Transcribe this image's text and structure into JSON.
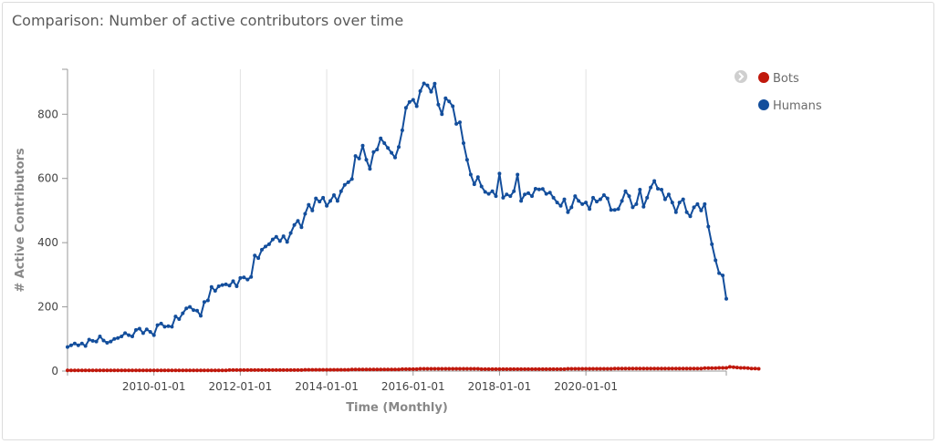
{
  "panel": {
    "title": "Comparison: Number of active contributors over time"
  },
  "legend": {
    "toggle_icon": "chevron-right-icon",
    "items": [
      {
        "name": "Bots",
        "color": "#c0180c"
      },
      {
        "name": "Humans",
        "color": "#134e9c"
      }
    ]
  },
  "chart_data": {
    "type": "line",
    "title": "Comparison: Number of active contributors over time",
    "xlabel": "Time (Monthly)",
    "ylabel": "# Active Contributors",
    "x_start": "2008-01-01",
    "x_frequency": "monthly",
    "x_tick_labels": [
      "2010-01-01",
      "2012-01-01",
      "2014-01-01",
      "2016-01-01",
      "2018-01-01",
      "2020-01-01"
    ],
    "y_ticks": [
      0,
      200,
      400,
      600,
      800
    ],
    "ylim": [
      0,
      940
    ],
    "grid": "vertical",
    "legend_position": "top-right",
    "series": [
      {
        "name": "Humans",
        "color": "#134e9c",
        "values": [
          75,
          80,
          86,
          80,
          86,
          78,
          98,
          94,
          92,
          108,
          95,
          88,
          92,
          100,
          103,
          108,
          118,
          112,
          108,
          128,
          132,
          118,
          130,
          122,
          112,
          143,
          148,
          138,
          140,
          138,
          170,
          162,
          180,
          195,
          200,
          190,
          188,
          172,
          215,
          220,
          262,
          250,
          264,
          268,
          270,
          266,
          280,
          264,
          290,
          292,
          285,
          293,
          360,
          352,
          378,
          388,
          395,
          410,
          418,
          405,
          420,
          402,
          430,
          455,
          468,
          448,
          490,
          518,
          500,
          538,
          528,
          540,
          515,
          530,
          548,
          530,
          560,
          580,
          588,
          598,
          670,
          662,
          702,
          658,
          630,
          682,
          690,
          725,
          710,
          695,
          680,
          665,
          698,
          750,
          820,
          838,
          845,
          825,
          872,
          896,
          890,
          870,
          895,
          830,
          800,
          850,
          840,
          825,
          770,
          775,
          710,
          658,
          612,
          582,
          604,
          575,
          558,
          552,
          560,
          545,
          615,
          540,
          550,
          545,
          560,
          612,
          530,
          550,
          554,
          545,
          568,
          566,
          567,
          552,
          556,
          540,
          525,
          515,
          535,
          495,
          510,
          545,
          530,
          520,
          525,
          505,
          540,
          528,
          535,
          548,
          538,
          502,
          502,
          505,
          530,
          560,
          545,
          510,
          520,
          565,
          512,
          540,
          572,
          592,
          568,
          565,
          535,
          550,
          525,
          495,
          525,
          535,
          495,
          482,
          510,
          520,
          500,
          520,
          450,
          395,
          345,
          305,
          298,
          225
        ],
        "marker": "circle"
      },
      {
        "name": "Bots",
        "color": "#c0180c",
        "values": [
          2,
          2,
          2,
          2,
          2,
          2,
          2,
          2,
          2,
          2,
          2,
          2,
          2,
          2,
          2,
          2,
          2,
          2,
          2,
          2,
          2,
          2,
          2,
          2,
          2,
          2,
          2,
          2,
          2,
          2,
          2,
          2,
          2,
          2,
          2,
          2,
          2,
          2,
          2,
          2,
          2,
          2,
          2,
          2,
          2,
          3,
          3,
          3,
          3,
          3,
          3,
          3,
          3,
          3,
          3,
          3,
          3,
          3,
          3,
          3,
          3,
          3,
          3,
          3,
          3,
          3,
          4,
          4,
          4,
          4,
          4,
          4,
          4,
          4,
          4,
          4,
          4,
          4,
          4,
          5,
          5,
          5,
          5,
          5,
          5,
          5,
          5,
          5,
          5,
          5,
          5,
          5,
          5,
          6,
          6,
          6,
          6,
          6,
          7,
          7,
          7,
          7,
          7,
          7,
          7,
          7,
          7,
          7,
          7,
          7,
          7,
          7,
          7,
          7,
          7,
          6,
          6,
          6,
          6,
          6,
          6,
          6,
          6,
          6,
          6,
          6,
          6,
          6,
          6,
          6,
          6,
          6,
          6,
          6,
          6,
          6,
          6,
          6,
          6,
          7,
          7,
          7,
          7,
          7,
          7,
          7,
          7,
          7,
          7,
          7,
          7,
          7,
          8,
          8,
          8,
          8,
          8,
          8,
          8,
          8,
          8,
          8,
          8,
          8,
          8,
          8,
          8,
          8,
          8,
          8,
          8,
          8,
          8,
          8,
          8,
          8,
          8,
          9,
          9,
          9,
          9,
          10,
          10,
          10,
          13,
          12,
          11,
          10,
          10,
          9,
          8,
          8,
          7
        ],
        "marker": "circle"
      }
    ]
  }
}
